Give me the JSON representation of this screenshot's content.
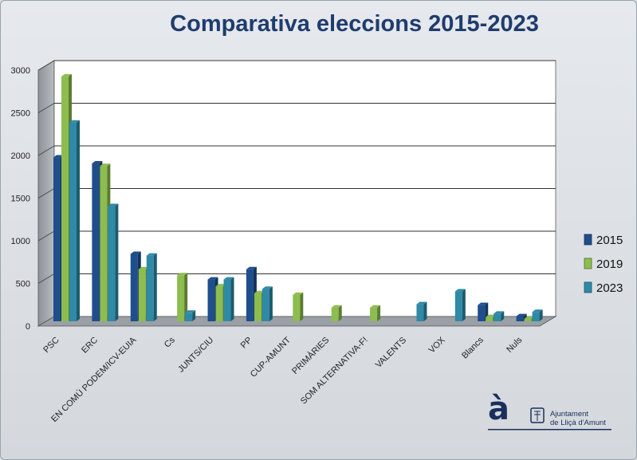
{
  "chart_data": {
    "type": "bar",
    "title": "Comparativa eleccions 2015-2023",
    "categories": [
      "PSC",
      "ERC",
      "EN COMÚ PODEM/ICV-EUIA",
      "Cs",
      "JUNTS/CIU",
      "PP",
      "CUP-AMUNT",
      "PRIMÀRIES",
      "SOM ALTERNATIVA-F!",
      "VALENTS",
      "VOX",
      "Blancs",
      "Nuls"
    ],
    "series": [
      {
        "name": "2015",
        "color": "#1f4e8c",
        "values": [
          1920,
          1850,
          790,
          0,
          490,
          610,
          0,
          0,
          0,
          0,
          0,
          190,
          60
        ]
      },
      {
        "name": "2019",
        "color": "#8cbd4e",
        "values": [
          2870,
          1820,
          610,
          540,
          410,
          330,
          310,
          160,
          160,
          0,
          0,
          50,
          30
        ]
      },
      {
        "name": "2023",
        "color": "#2e8aa6",
        "values": [
          2330,
          1350,
          770,
          100,
          490,
          380,
          0,
          0,
          0,
          200,
          350,
          90,
          110
        ]
      }
    ],
    "ylim": [
      0,
      3000
    ],
    "yticks": [
      0,
      500,
      1000,
      1500,
      2000,
      2500,
      3000
    ],
    "grid": true,
    "legend_position": "right",
    "xlabel": "",
    "ylabel": ""
  },
  "logo": {
    "glyph": "à",
    "line1": "Ajuntament",
    "line2": "de Lliçà d'Amunt"
  }
}
